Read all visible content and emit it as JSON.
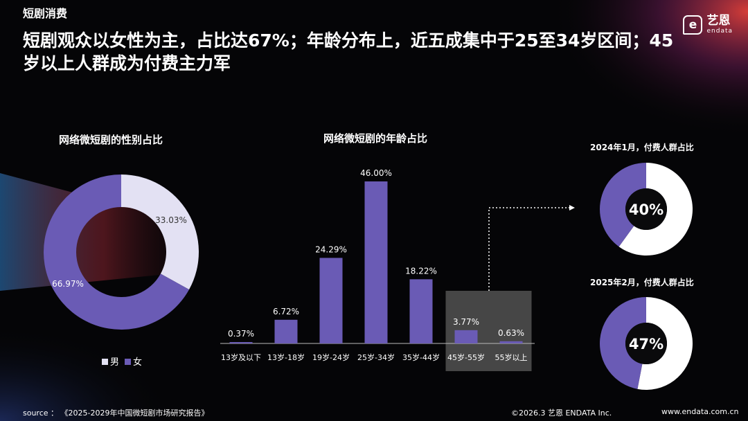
{
  "header": {
    "section_tag": "短剧消费",
    "headline": "短剧观众以女性为主，占比达67%；年龄分布上，近五成集中于25至34岁区间；45岁以上人群成为付费主力军",
    "logo_cn": "艺恩",
    "logo_en": "endata"
  },
  "colors": {
    "female": "#6a5bb5",
    "male": "#e3e1f3",
    "bar": "#6a5bb5",
    "highlight_box": "#4a4a4a",
    "paying_fill": "#6a5bb5",
    "paying_rest": "#ffffff"
  },
  "chart_data": [
    {
      "type": "pie",
      "title": "网络微短剧的性别占比",
      "slices": [
        {
          "name": "男",
          "value": 33.03,
          "label": "33.03%"
        },
        {
          "name": "女",
          "value": 66.97,
          "label": "66.97%"
        }
      ],
      "legend": [
        "男",
        "女"
      ]
    },
    {
      "type": "bar",
      "title": "网络微短剧的年龄占比",
      "categories": [
        "13岁及以下",
        "13岁-18岁",
        "19岁-24岁",
        "25岁-34岁",
        "35岁-44岁",
        "45岁-55岁",
        "55岁以上"
      ],
      "values": [
        0.37,
        6.72,
        24.29,
        46.0,
        18.22,
        3.77,
        0.63
      ],
      "labels": [
        "0.37%",
        "6.72%",
        "24.29%",
        "46.00%",
        "18.22%",
        "3.77%",
        "0.63%"
      ],
      "ylim": [
        0,
        46
      ],
      "highlighted_categories": [
        "45岁-55岁",
        "55岁以上"
      ]
    },
    {
      "type": "pie",
      "title": "2024年1月，付费人群占比",
      "value": 40,
      "center_label": "40%"
    },
    {
      "type": "pie",
      "title": "2025年2月，付费人群占比",
      "value": 47,
      "center_label": "47%"
    }
  ],
  "footer": {
    "source": "source ：  《2025-2029年中国微短剧市场研究报告》",
    "copyright": "©2026.3  艺恩 ENDATA Inc.",
    "url": "www.endata.com.cn"
  }
}
